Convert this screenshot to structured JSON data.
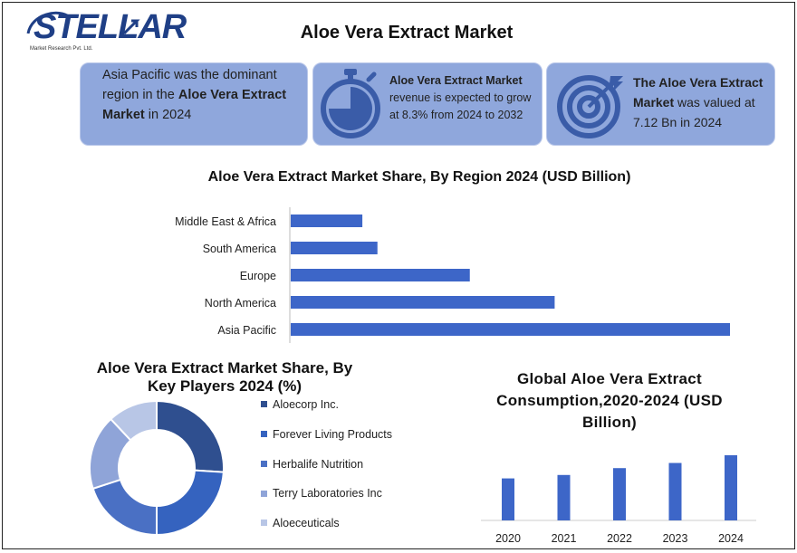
{
  "logo": {
    "name": "STELLAR",
    "subtitle": "Market Research Pvt. Ltd."
  },
  "title": "Aloe Vera Extract Market",
  "cards": [
    {
      "parts": [
        {
          "text": "Asia Pacific was the dominant region in the ",
          "bold": false
        },
        {
          "text": "Aloe Vera Extract Market",
          "bold": true
        },
        {
          "text": " in 2024",
          "bold": false
        }
      ]
    },
    {
      "icon": "stopwatch-icon",
      "parts": [
        {
          "text": "Aloe Vera Extract Market",
          "bold": true
        },
        {
          "text": " revenue is expected to grow at 8.3% from 2024 to 2032",
          "bold": false
        }
      ]
    },
    {
      "icon": "target-icon",
      "parts": [
        {
          "text": "The Aloe Vera Extract Market",
          "bold": true
        },
        {
          "text": " was valued at 7.12 Bn in 2024",
          "bold": false
        }
      ]
    }
  ],
  "colors": {
    "card_bg": "#8fa7dc",
    "bar": "#3d66c8",
    "icon": "#3a5ca8"
  },
  "chart_data": [
    {
      "type": "bar",
      "orientation": "horizontal",
      "title": "Aloe Vera Extract Market Share, By Region 2024 (USD Billion)",
      "categories": [
        "Middle East & Africa",
        "South America",
        "Europe",
        "North America",
        "Asia Pacific"
      ],
      "values": [
        0.38,
        0.46,
        0.95,
        1.4,
        2.33
      ],
      "xlim": [
        0,
        2.4
      ],
      "grid": false
    },
    {
      "type": "pie",
      "variant": "donut",
      "title": "Aloe Vera Extract Market Share, By Key Players  2024 (%)",
      "categories": [
        "Aloecorp Inc.",
        "Forever Living Products",
        "Herbalife Nutrition",
        "Terry Laboratories Inc",
        "Aloeceuticals"
      ],
      "values": [
        26,
        24,
        20,
        18,
        12
      ],
      "colors": [
        "#2f4f8f",
        "#3563bf",
        "#4a70c4",
        "#8fa4d8",
        "#b8c6e6"
      ],
      "legend": "right"
    },
    {
      "type": "bar",
      "title": "Global Aloe Vera Extract Consumption,2020-2024 (USD Billion)",
      "categories": [
        "2020",
        "2021",
        "2022",
        "2023",
        "2024"
      ],
      "values": [
        4.9,
        5.3,
        6.1,
        6.7,
        7.6
      ],
      "ylim": [
        0,
        8
      ],
      "grid": false
    }
  ]
}
